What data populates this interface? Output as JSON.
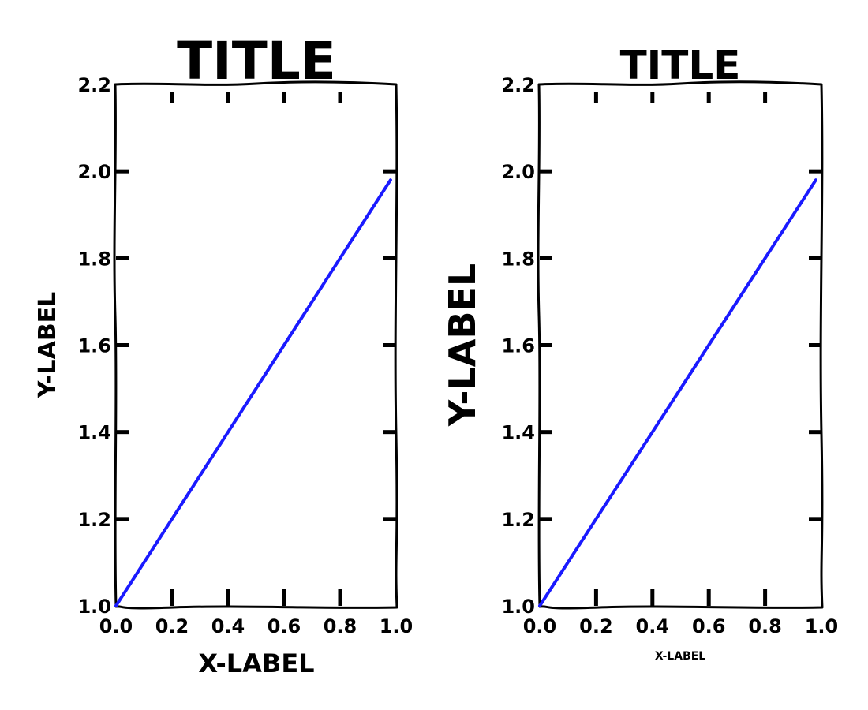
{
  "colors": {
    "series": "#1a1aff",
    "axes": "#000000",
    "background": "#ffffff"
  },
  "chart_data": [
    {
      "type": "line",
      "title": "TITLE",
      "xlabel": "X-LABEL",
      "ylabel": "Y-LABEL",
      "xlim": [
        0.0,
        1.0
      ],
      "ylim": [
        1.0,
        2.2
      ],
      "xticks": [
        "0.0",
        "0.2",
        "0.4",
        "0.6",
        "0.8",
        "1.0"
      ],
      "yticks": [
        "1.0",
        "1.2",
        "1.4",
        "1.6",
        "1.8",
        "2.0",
        "2.2"
      ],
      "grid": false,
      "legend": "none",
      "series": [
        {
          "x": [
            0.0,
            0.1,
            0.2,
            0.3,
            0.4,
            0.5,
            0.6,
            0.7,
            0.8,
            0.9,
            0.98
          ],
          "y": [
            1.0,
            1.1,
            1.2,
            1.3,
            1.4,
            1.5,
            1.6,
            1.7,
            1.8,
            1.9,
            1.98
          ]
        }
      ]
    },
    {
      "type": "line",
      "title": "TITLE",
      "xlabel": "X-LABEL",
      "ylabel": "Y-LABEL",
      "xlim": [
        0.0,
        1.0
      ],
      "ylim": [
        1.0,
        2.2
      ],
      "xticks": [
        "0.0",
        "0.2",
        "0.4",
        "0.6",
        "0.8",
        "1.0"
      ],
      "yticks": [
        "1.0",
        "1.2",
        "1.4",
        "1.6",
        "1.8",
        "2.0",
        "2.2"
      ],
      "grid": false,
      "legend": "none",
      "series": [
        {
          "x": [
            0.0,
            0.1,
            0.2,
            0.3,
            0.4,
            0.5,
            0.6,
            0.7,
            0.8,
            0.9,
            0.98
          ],
          "y": [
            1.0,
            1.1,
            1.2,
            1.3,
            1.4,
            1.5,
            1.6,
            1.7,
            1.8,
            1.9,
            1.98
          ]
        }
      ]
    }
  ]
}
